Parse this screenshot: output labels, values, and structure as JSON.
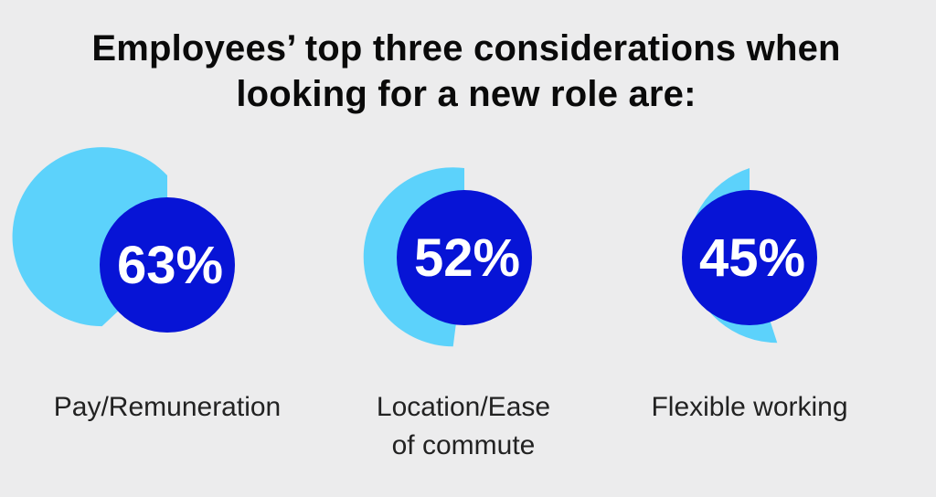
{
  "title": {
    "line1": "Employees’ top three considerations when",
    "line2": "looking for a new role are:"
  },
  "colors": {
    "ring": "#5cd2fb",
    "disc": "#0714d6",
    "percent_text": "#ffffff",
    "background": "#ececed"
  },
  "chart_data": {
    "type": "pie",
    "title": "Employees’ top three considerations when looking for a new role are:",
    "categories": [
      "Pay/Remuneration",
      "Location/Ease of commute",
      "Flexible working"
    ],
    "values": [
      63,
      52,
      45
    ],
    "value_labels": [
      "63%",
      "52%",
      "45%"
    ],
    "label_lines": [
      [
        "Pay/Remuneration"
      ],
      [
        "Location/Ease",
        "of commute"
      ],
      [
        "Flexible working"
      ]
    ],
    "unit": "%"
  }
}
